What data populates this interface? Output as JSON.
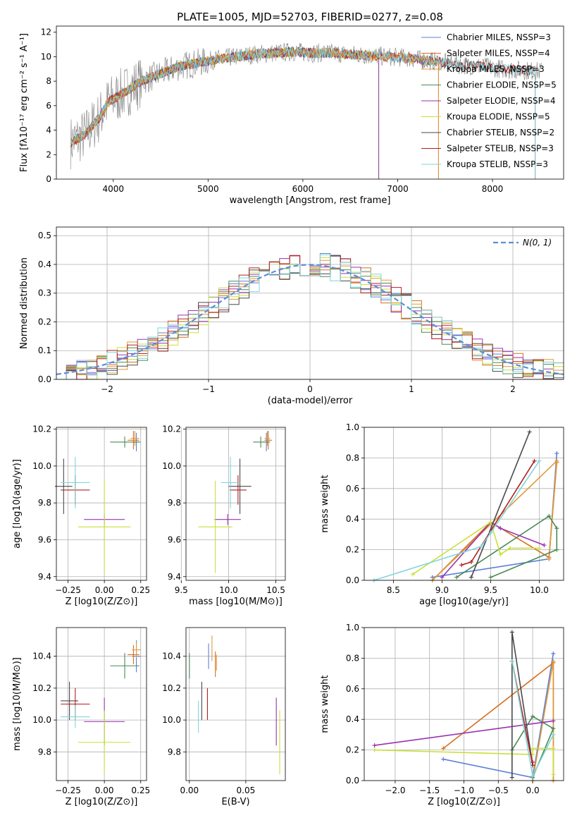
{
  "colors": {
    "chab_miles": "#5b7fd8",
    "salp_miles": "#d66f1e",
    "krou_miles": "#e0993a",
    "chab_elodie": "#4a8a55",
    "salp_elodie": "#9b32b0",
    "krou_elodie": "#c9e03a",
    "chab_stelib": "#4a4a4a",
    "salp_stelib": "#b22020",
    "krou_stelib": "#7fd6dc",
    "gauss": "#5b8fd8",
    "spectrum": "#808080"
  },
  "chart_data": [
    {
      "type": "line",
      "title": "PLATE=1005, MJD=52703, FIBERID=0277, z=0.08",
      "xlabel": "wavelength [Angstrom, rest frame]",
      "ylabel": "Flux [fλ10⁻¹⁷ erg cm⁻² s⁻¹ A⁻¹]",
      "xlim": [
        3400,
        8750
      ],
      "ylim": [
        0,
        12.5
      ],
      "xticks": [
        "4000",
        "5000",
        "6000",
        "7000",
        "8000"
      ],
      "yticks": [
        "0",
        "2",
        "4",
        "6",
        "8",
        "10",
        "12"
      ],
      "legend": [
        {
          "label": "Chabrier MILES, NSSP=3",
          "color": "chab_miles"
        },
        {
          "label": "Salpeter MILES, NSSP=4",
          "color": "salp_miles"
        },
        {
          "label": "Kroupa MILES, NSSP=3",
          "color": "krou_miles"
        },
        {
          "label": "Chabrier ELODIE, NSSP=5",
          "color": "chab_elodie"
        },
        {
          "label": "Salpeter ELODIE, NSSP=4",
          "color": "salp_elodie"
        },
        {
          "label": "Kroupa ELODIE, NSSP=5",
          "color": "krou_elodie"
        },
        {
          "label": "Chabrier STELIB, NSSP=2",
          "color": "chab_stelib"
        },
        {
          "label": "Salpeter STELIB, NSSP=3",
          "color": "salp_stelib"
        },
        {
          "label": "Kroupa STELIB, NSSP=3",
          "color": "krou_stelib"
        }
      ],
      "continuum": [
        [
          3550,
          3.0
        ],
        [
          3700,
          3.6
        ],
        [
          3850,
          5.0
        ],
        [
          3950,
          6.3
        ],
        [
          4100,
          7.0
        ],
        [
          4300,
          8.0
        ],
        [
          4500,
          8.6
        ],
        [
          4700,
          9.2
        ],
        [
          4900,
          9.5
        ],
        [
          5100,
          9.8
        ],
        [
          5300,
          10.0
        ],
        [
          5500,
          10.2
        ],
        [
          5700,
          10.3
        ],
        [
          5900,
          10.4
        ],
        [
          6100,
          10.3
        ],
        [
          6300,
          10.3
        ],
        [
          6500,
          10.2
        ],
        [
          6700,
          10.1
        ],
        [
          6900,
          10.0
        ],
        [
          7100,
          9.9
        ],
        [
          7300,
          9.7
        ],
        [
          7500,
          9.5
        ],
        [
          7700,
          9.3
        ],
        [
          7900,
          9.2
        ],
        [
          8100,
          9.0
        ],
        [
          8300,
          8.9
        ],
        [
          8500,
          8.8
        ]
      ]
    },
    {
      "type": "histogram",
      "xlabel": "(data-model)/error",
      "ylabel": "Normed distribution",
      "xlim": [
        -2.5,
        2.5
      ],
      "ylim": [
        0,
        0.53
      ],
      "xticks": [
        "−2",
        "−1",
        "0",
        "1",
        "2"
      ],
      "yticks": [
        "0.0",
        "0.1",
        "0.2",
        "0.3",
        "0.4",
        "0.5"
      ],
      "legend": [
        {
          "label": "N(0, 1)",
          "color": "gauss"
        }
      ]
    },
    {
      "type": "scatter",
      "xlabel": "Z [log10(Z/Z⊙)]",
      "ylabel": "age  [log10(age/yr)]",
      "xlim": [
        -0.33,
        0.29
      ],
      "ylim": [
        9.38,
        10.21
      ],
      "xticks": [
        "−0.25",
        "0.00",
        "0.25"
      ],
      "yticks": [
        "9.4",
        "9.6",
        "9.8",
        "10.0",
        "10.2"
      ],
      "points": [
        {
          "color": "chab_miles",
          "x": 0.22,
          "y": 10.13,
          "xe": 0.03,
          "ye": 0.05
        },
        {
          "color": "salp_miles",
          "x": 0.2,
          "y": 10.14,
          "xe": 0.04,
          "ye": 0.05
        },
        {
          "color": "krou_miles",
          "x": 0.21,
          "y": 10.15,
          "xe": 0.03,
          "ye": 0.04
        },
        {
          "color": "chab_elodie",
          "x": 0.14,
          "y": 10.13,
          "xe": 0.1,
          "ye": 0.03
        },
        {
          "color": "salp_elodie",
          "x": 0.0,
          "y": 9.71,
          "xe": 0.14,
          "ye": 0.03
        },
        {
          "color": "krou_elodie",
          "x": 0.0,
          "y": 9.67,
          "xe": 0.18,
          "ye": 0.25
        },
        {
          "color": "chab_stelib",
          "x": -0.28,
          "y": 9.89,
          "xe": 0.06,
          "ye": 0.15
        },
        {
          "color": "salp_stelib",
          "x": -0.2,
          "y": 9.87,
          "xe": 0.1,
          "ye": 0.08
        },
        {
          "color": "krou_stelib",
          "x": -0.2,
          "y": 9.91,
          "xe": 0.1,
          "ye": 0.14
        }
      ]
    },
    {
      "type": "scatter",
      "xlabel": "mass [log10(M/M⊙)]",
      "ylabel": "",
      "xlim": [
        9.55,
        10.6
      ],
      "ylim": [
        9.38,
        10.21
      ],
      "xticks": [
        "9.5",
        "10.0",
        "10.5"
      ],
      "yticks": [
        "9.4",
        "9.6",
        "9.8",
        "10.0",
        "10.2"
      ],
      "points": [
        {
          "color": "chab_miles",
          "x": 10.4,
          "y": 10.13,
          "xe": 0.04,
          "ye": 0.05
        },
        {
          "color": "salp_miles",
          "x": 10.42,
          "y": 10.14,
          "xe": 0.04,
          "ye": 0.05
        },
        {
          "color": "krou_miles",
          "x": 10.41,
          "y": 10.15,
          "xe": 0.03,
          "ye": 0.04
        },
        {
          "color": "chab_elodie",
          "x": 10.34,
          "y": 10.13,
          "xe": 0.08,
          "ye": 0.03
        },
        {
          "color": "salp_elodie",
          "x": 9.99,
          "y": 9.71,
          "xe": 0.14,
          "ye": 0.03
        },
        {
          "color": "krou_elodie",
          "x": 9.86,
          "y": 9.67,
          "xe": 0.18,
          "ye": 0.25
        },
        {
          "color": "chab_stelib",
          "x": 10.12,
          "y": 9.89,
          "xe": 0.12,
          "ye": 0.15
        },
        {
          "color": "salp_stelib",
          "x": 10.1,
          "y": 9.87,
          "xe": 0.09,
          "ye": 0.08
        },
        {
          "color": "krou_stelib",
          "x": 10.02,
          "y": 9.91,
          "xe": 0.1,
          "ye": 0.14
        }
      ]
    },
    {
      "type": "line",
      "xlabel": "age  [log10(age/yr)]",
      "ylabel": "mass weight",
      "xlim": [
        8.2,
        10.25
      ],
      "ylim": [
        0,
        1.0
      ],
      "xticks": [
        "8.5",
        "9.0",
        "9.5",
        "10.0"
      ],
      "yticks": [
        "0.0",
        "0.2",
        "0.4",
        "0.6",
        "0.8",
        "1.0"
      ],
      "series": [
        {
          "color": "chab_miles",
          "x": [
            8.9,
            10.1,
            10.18
          ],
          "y": [
            0.02,
            0.14,
            0.83
          ]
        },
        {
          "color": "salp_miles",
          "x": [
            8.9,
            9.5,
            10.1,
            10.18
          ],
          "y": [
            0.0,
            0.38,
            0.15,
            0.77
          ]
        },
        {
          "color": "krou_miles",
          "x": [
            8.9,
            10.18,
            10.1
          ],
          "y": [
            0.0,
            0.78,
            0.14
          ]
        },
        {
          "color": "chab_elodie",
          "x": [
            9.15,
            10.1,
            10.18,
            10.18,
            9.5
          ],
          "y": [
            0.02,
            0.42,
            0.34,
            0.2,
            0.02
          ]
        },
        {
          "color": "salp_elodie",
          "x": [
            9.0,
            9.5,
            9.6,
            10.05
          ],
          "y": [
            0.02,
            0.38,
            0.34,
            0.23
          ]
        },
        {
          "color": "krou_elodie",
          "x": [
            8.7,
            9.5,
            9.6,
            9.7,
            10.0
          ],
          "y": [
            0.04,
            0.38,
            0.17,
            0.21,
            0.21
          ]
        },
        {
          "color": "chab_stelib",
          "x": [
            9.3,
            9.9
          ],
          "y": [
            0.02,
            0.97
          ]
        },
        {
          "color": "salp_stelib",
          "x": [
            9.2,
            9.3,
            9.95
          ],
          "y": [
            0.1,
            0.12,
            0.78
          ]
        },
        {
          "color": "krou_stelib",
          "x": [
            8.3,
            9.4,
            9.5,
            10.0
          ],
          "y": [
            0.0,
            0.22,
            0.31,
            0.78
          ]
        }
      ]
    },
    {
      "type": "scatter",
      "xlabel": "Z [log10(Z/Z⊙)]",
      "ylabel": "mass [log10(M/M⊙)]",
      "xlim": [
        -0.33,
        0.29
      ],
      "ylim": [
        9.62,
        10.58
      ],
      "xticks": [
        "−0.25",
        "0.00",
        "0.25"
      ],
      "yticks": [
        "9.8",
        "10.0",
        "10.2",
        "10.4"
      ],
      "points": [
        {
          "color": "chab_miles",
          "x": 0.22,
          "y": 10.4,
          "xe": 0.03,
          "ye": 0.1
        },
        {
          "color": "salp_miles",
          "x": 0.2,
          "y": 10.41,
          "xe": 0.04,
          "ye": 0.06
        },
        {
          "color": "krou_miles",
          "x": 0.22,
          "y": 10.44,
          "xe": 0.03,
          "ye": 0.05
        },
        {
          "color": "chab_elodie",
          "x": 0.14,
          "y": 10.34,
          "xe": 0.1,
          "ye": 0.08
        },
        {
          "color": "salp_elodie",
          "x": 0.0,
          "y": 9.99,
          "xe": 0.14,
          "ye": 0.15
        },
        {
          "color": "krou_elodie",
          "x": 0.0,
          "y": 9.86,
          "xe": 0.18,
          "ye": 0.2
        },
        {
          "color": "chab_stelib",
          "x": -0.24,
          "y": 10.12,
          "xe": 0.06,
          "ye": 0.12
        },
        {
          "color": "salp_stelib",
          "x": -0.2,
          "y": 10.1,
          "xe": 0.1,
          "ye": 0.1
        },
        {
          "color": "krou_stelib",
          "x": -0.2,
          "y": 10.02,
          "xe": 0.1,
          "ye": 0.07
        }
      ]
    },
    {
      "type": "scatter",
      "xlabel": "E(B-V)",
      "ylabel": "",
      "xlim": [
        -0.003,
        0.085
      ],
      "ylim": [
        9.62,
        10.58
      ],
      "xticks": [
        "0.00",
        "0.05"
      ],
      "yticks": [
        "9.8",
        "10.0",
        "10.2",
        "10.4"
      ],
      "points": [
        {
          "color": "chab_miles",
          "x": 0.017,
          "y": 10.4,
          "xe": 0,
          "ye": 0.08
        },
        {
          "color": "salp_miles",
          "x": 0.023,
          "y": 10.35,
          "xe": 0,
          "ye": 0.08
        },
        {
          "color": "krou_miles",
          "x": 0.024,
          "y": 10.36,
          "xe": 0,
          "ye": 0.05
        },
        {
          "color": "chab_elodie",
          "x": 0.0,
          "y": 10.34,
          "xe": 0,
          "ye": 0.08
        },
        {
          "color": "salp_elodie",
          "x": 0.077,
          "y": 9.99,
          "xe": 0,
          "ye": 0.15
        },
        {
          "color": "krou_elodie",
          "x": 0.08,
          "y": 9.86,
          "xe": 0,
          "ye": 0.2
        },
        {
          "color": "chab_stelib",
          "x": 0.011,
          "y": 10.12,
          "xe": 0,
          "ye": 0.12
        },
        {
          "color": "salp_stelib",
          "x": 0.016,
          "y": 10.1,
          "xe": 0,
          "ye": 0.1
        },
        {
          "color": "krou_stelib",
          "x": 0.008,
          "y": 10.02,
          "xe": 0,
          "ye": 0.1
        },
        {
          "color": "krou_miles",
          "x": 0.02,
          "y": 10.45,
          "xe": 0,
          "ye": 0.08
        }
      ]
    },
    {
      "type": "line",
      "xlabel": "Z [log10(Z/Z⊙)]",
      "ylabel": "mass weight",
      "xlim": [
        -2.45,
        0.45
      ],
      "ylim": [
        0,
        1.0
      ],
      "xticks": [
        "−2.0",
        "−1.5",
        "−1.0",
        "−0.5",
        "0.0"
      ],
      "yticks": [
        "0.0",
        "0.2",
        "0.4",
        "0.6",
        "0.8",
        "1.0"
      ],
      "series": [
        {
          "color": "chab_miles",
          "x": [
            -1.3,
            0.0,
            0.3
          ],
          "y": [
            0.14,
            0.02,
            0.83
          ]
        },
        {
          "color": "salp_miles",
          "x": [
            -1.3,
            0.3,
            0.3
          ],
          "y": [
            0.21,
            0.77,
            0.0
          ]
        },
        {
          "color": "krou_miles",
          "x": [
            0.0,
            0.3,
            0.3
          ],
          "y": [
            0.0,
            0.78,
            0.0
          ]
        },
        {
          "color": "chab_elodie",
          "x": [
            -0.3,
            0.0,
            0.3,
            0.0
          ],
          "y": [
            0.2,
            0.42,
            0.34,
            0.02
          ]
        },
        {
          "color": "salp_elodie",
          "x": [
            -2.3,
            0.3
          ],
          "y": [
            0.23,
            0.39
          ]
        },
        {
          "color": "krou_elodie",
          "x": [
            -2.3,
            0.0,
            0.0,
            0.3,
            0.3
          ],
          "y": [
            0.2,
            0.17,
            0.21,
            0.21,
            0.04
          ]
        },
        {
          "color": "chab_stelib",
          "x": [
            -0.3,
            -0.3,
            0.0
          ],
          "y": [
            0.02,
            0.97,
            0.1
          ]
        },
        {
          "color": "salp_stelib",
          "x": [
            -0.3,
            0.0,
            0.0
          ],
          "y": [
            0.78,
            0.1,
            0.12
          ]
        },
        {
          "color": "krou_stelib",
          "x": [
            -0.3,
            0.0,
            0.3
          ],
          "y": [
            0.78,
            0.03,
            0.3
          ]
        }
      ]
    }
  ]
}
